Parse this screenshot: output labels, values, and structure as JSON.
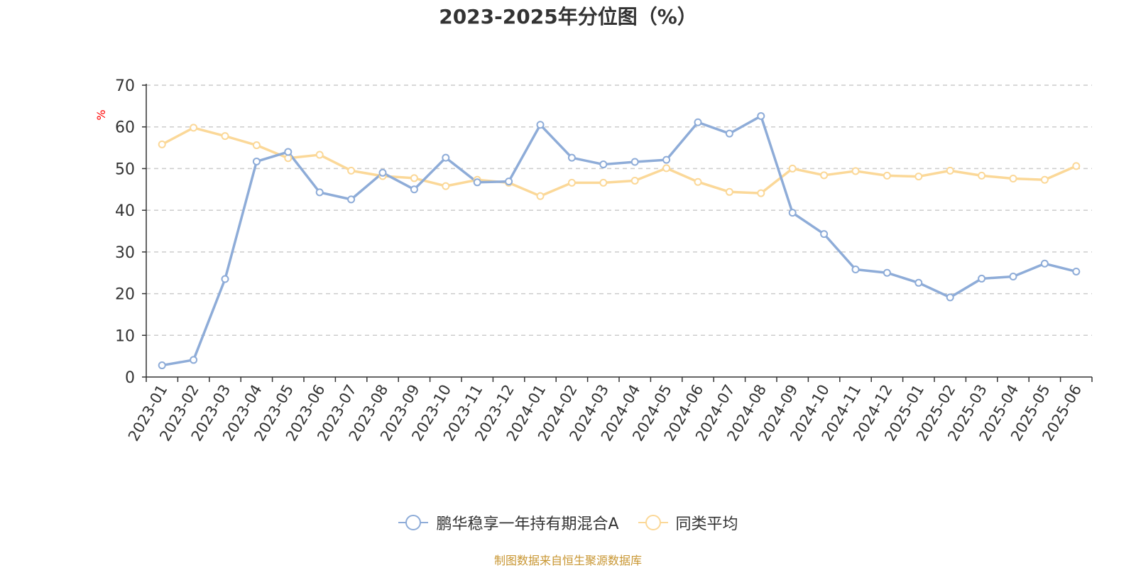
{
  "title": "2023-2025年分位图（%）",
  "footer": {
    "source": "制图数据来自恒生聚源数据库",
    "color": "#c89632"
  },
  "chart_data": {
    "type": "line",
    "title": "2023-2025年分位图（%）",
    "ylabel": "%",
    "ylabel_color": "#ff0000",
    "ylim": [
      0,
      70
    ],
    "yticks": [
      0,
      10,
      20,
      30,
      40,
      50,
      60,
      70
    ],
    "grid": "horizontal-dashed",
    "legend_position": "bottom-center",
    "categories": [
      "2023-01",
      "2023-02",
      "2023-03",
      "2023-04",
      "2023-05",
      "2023-06",
      "2023-07",
      "2023-08",
      "2023-09",
      "2023-10",
      "2023-11",
      "2023-12",
      "2024-01",
      "2024-02",
      "2024-03",
      "2024-04",
      "2024-05",
      "2024-06",
      "2024-07",
      "2024-08",
      "2024-09",
      "2024-10",
      "2024-11",
      "2024-12",
      "2025-01",
      "2025-02",
      "2025-03",
      "2025-04",
      "2025-05",
      "2025-06"
    ],
    "series": [
      {
        "name": "鹏华稳享一年持有期混合A",
        "color": "#8eacd8",
        "values": [
          2.8,
          4.1,
          23.5,
          51.7,
          54.0,
          44.3,
          42.6,
          49.0,
          45.0,
          52.6,
          46.7,
          46.9,
          60.5,
          52.6,
          51.0,
          51.6,
          52.1,
          61.1,
          58.4,
          62.6,
          39.4,
          34.3,
          25.8,
          25.0,
          22.6,
          19.1,
          23.6,
          24.1,
          27.2,
          25.3
        ]
      },
      {
        "name": "同类平均",
        "color": "#fbd898",
        "values": [
          55.8,
          59.8,
          57.8,
          55.6,
          52.5,
          53.3,
          49.5,
          48.2,
          47.7,
          45.8,
          47.3,
          46.6,
          43.4,
          46.6,
          46.6,
          47.1,
          50.1,
          46.8,
          44.4,
          44.1,
          50.0,
          48.4,
          49.4,
          48.3,
          48.1,
          49.5,
          48.3,
          47.6,
          47.3,
          50.6
        ]
      }
    ]
  }
}
